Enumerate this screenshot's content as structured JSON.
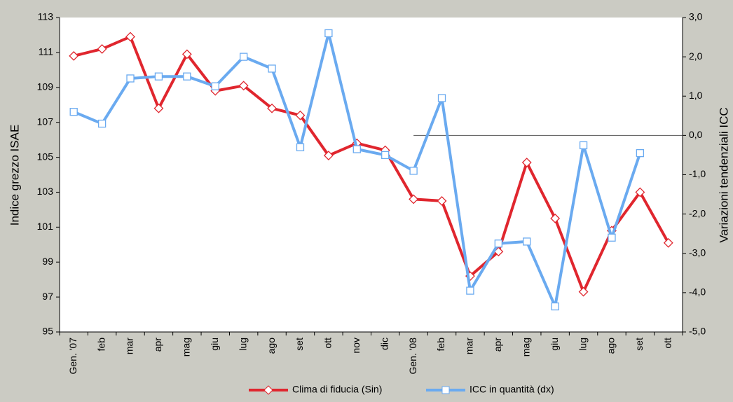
{
  "chart_data": {
    "type": "line",
    "y_label": "Indice grezzo ISAE",
    "y2_label": "Variazioni tendenziali ICC",
    "categories": [
      "Gen. '07",
      "feb",
      "mar",
      "apr",
      "mag",
      "giu",
      "lug",
      "ago",
      "set",
      "ott",
      "nov",
      "dic",
      "Gen. '08",
      "feb",
      "mar",
      "apr",
      "mag",
      "giu",
      "lug",
      "ago",
      "set",
      "ott"
    ],
    "series": [
      {
        "name": "Clima di fiducia (Sin)",
        "color": "#e0262e",
        "marker": "diamond",
        "values": [
          110.8,
          111.2,
          111.9,
          107.8,
          110.9,
          108.8,
          109.1,
          107.8,
          107.4,
          105.1,
          105.8,
          105.4,
          102.6,
          102.5,
          98.2,
          99.6,
          104.7,
          101.5,
          97.3,
          100.8,
          103.0,
          100.1
        ]
      },
      {
        "name": "ICC in quantità (dx)",
        "color": "#6aaaf0",
        "marker": "square",
        "axis": "y2",
        "values": [
          0.6,
          0.3,
          1.45,
          1.5,
          1.5,
          1.25,
          2.0,
          1.7,
          -0.3,
          2.6,
          -0.35,
          -0.5,
          -0.9,
          0.95,
          -3.95,
          -2.75,
          -2.7,
          -4.35,
          -0.25,
          -2.6,
          -0.45,
          null
        ]
      }
    ],
    "ylim": [
      95,
      113
    ],
    "yticks": [
      95,
      97,
      99,
      101,
      103,
      105,
      107,
      109,
      111,
      113
    ],
    "y2lim": [
      -5,
      3
    ],
    "y2ticks": [
      {
        "value": -5,
        "label": "-5,0"
      },
      {
        "value": -4,
        "label": "-4,0"
      },
      {
        "value": -3,
        "label": "-3,0"
      },
      {
        "value": -2,
        "label": "-2,0"
      },
      {
        "value": -1,
        "label": "-1,0"
      },
      {
        "value": 0,
        "label": "0,0"
      },
      {
        "value": 1,
        "label": "1,0"
      },
      {
        "value": 2,
        "label": "2,0"
      },
      {
        "value": 3,
        "label": "3,0"
      }
    ],
    "legend": "bottom"
  }
}
